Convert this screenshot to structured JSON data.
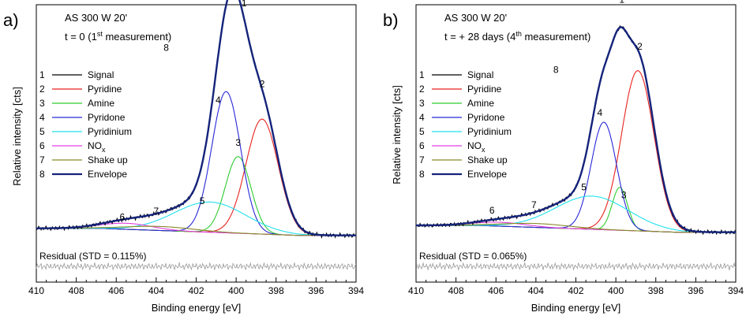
{
  "chart_data": [
    {
      "type": "line",
      "panel_label": "a)",
      "title": "AS 300 W 20'",
      "subtitle": "t = 0 (1st measurement)",
      "xlabel": "Binding energy [eV]",
      "ylabel": "Relative intensity [cts]",
      "x_reversed": true,
      "xlim": [
        410,
        394
      ],
      "xticks": [
        410,
        408,
        406,
        404,
        402,
        400,
        398,
        396,
        394
      ],
      "residual_label": "Residual (STD = 0.115%)",
      "legend_placement": "top-left",
      "legend": [
        {
          "num": "1",
          "label": "Signal",
          "color": "#000000"
        },
        {
          "num": "2",
          "label": "Pyridine",
          "color": "#e8231f"
        },
        {
          "num": "3",
          "label": "Amine",
          "color": "#2fcc2f"
        },
        {
          "num": "4",
          "label": "Pyridone",
          "color": "#2828d8"
        },
        {
          "num": "5",
          "label": "Pyridinium",
          "color": "#22e0ee"
        },
        {
          "num": "6",
          "label": "NOx",
          "color": "#e040e0"
        },
        {
          "num": "7",
          "label": "Shake up",
          "color": "#8a8a2a"
        },
        {
          "num": "8",
          "label": "Envelope",
          "color": "#14237a"
        }
      ],
      "peaks": [
        {
          "num": "2",
          "center": 398.7,
          "height": 0.57,
          "fwhm": 1.9
        },
        {
          "num": "3",
          "center": 399.9,
          "height": 0.38,
          "fwhm": 1.5
        },
        {
          "num": "4",
          "center": 400.5,
          "height": 0.7,
          "fwhm": 1.7
        },
        {
          "num": "5",
          "center": 401.3,
          "height": 0.15,
          "fwhm": 4.2
        },
        {
          "num": "6",
          "center": 405.5,
          "height": 0.03,
          "fwhm": 3.0
        },
        {
          "num": "7",
          "center": 403.8,
          "height": 0.02,
          "fwhm": 4.0
        }
      ],
      "peak_labels": [
        {
          "num": "1",
          "x": 399.6,
          "y": 1.14
        },
        {
          "num": "2",
          "x": 398.7,
          "y": 0.74
        },
        {
          "num": "3",
          "x": 399.9,
          "y": 0.45
        },
        {
          "num": "4",
          "x": 400.9,
          "y": 0.66
        },
        {
          "num": "5",
          "x": 401.7,
          "y": 0.16
        },
        {
          "num": "6",
          "x": 405.7,
          "y": 0.08
        },
        {
          "num": "7",
          "x": 404.0,
          "y": 0.11
        },
        {
          "num": "8",
          "x": 403.5,
          "y": 0.92
        }
      ]
    },
    {
      "type": "line",
      "panel_label": "b)",
      "title": "AS 300 W 20'",
      "subtitle": "t = + 28 days (4th measurement)",
      "xlabel": "Binding energy [eV]",
      "ylabel": "Relative intensity [cts]",
      "x_reversed": true,
      "xlim": [
        410,
        394
      ],
      "xticks": [
        410,
        408,
        406,
        404,
        402,
        400,
        398,
        396,
        394
      ],
      "residual_label": "Residual (STD = 0.065%)",
      "legend_placement": "top-left",
      "legend": [
        {
          "num": "1",
          "label": "Signal",
          "color": "#000000"
        },
        {
          "num": "2",
          "label": "Pyridine",
          "color": "#e8231f"
        },
        {
          "num": "3",
          "label": "Amine",
          "color": "#2fcc2f"
        },
        {
          "num": "4",
          "label": "Pyridone",
          "color": "#2828d8"
        },
        {
          "num": "5",
          "label": "Pyridinium",
          "color": "#22e0ee"
        },
        {
          "num": "6",
          "label": "NOx",
          "color": "#e040e0"
        },
        {
          "num": "7",
          "label": "Shake up",
          "color": "#8a8a2a"
        },
        {
          "num": "8",
          "label": "Envelope",
          "color": "#14237a"
        }
      ],
      "peaks": [
        {
          "num": "2",
          "center": 398.9,
          "height": 0.82,
          "fwhm": 1.9
        },
        {
          "num": "3",
          "center": 399.8,
          "height": 0.22,
          "fwhm": 0.9
        },
        {
          "num": "4",
          "center": 400.6,
          "height": 0.55,
          "fwhm": 1.5
        },
        {
          "num": "5",
          "center": 401.2,
          "height": 0.17,
          "fwhm": 4.3
        },
        {
          "num": "6",
          "center": 405.8,
          "height": 0.02,
          "fwhm": 3.0
        },
        {
          "num": "7",
          "center": 404.0,
          "height": 0.02,
          "fwhm": 4.0
        }
      ],
      "peak_labels": [
        {
          "num": "1",
          "x": 399.7,
          "y": 1.18
        },
        {
          "num": "2",
          "x": 398.8,
          "y": 0.94
        },
        {
          "num": "3",
          "x": 399.6,
          "y": 0.18
        },
        {
          "num": "4",
          "x": 400.8,
          "y": 0.6
        },
        {
          "num": "5",
          "x": 401.6,
          "y": 0.22
        },
        {
          "num": "6",
          "x": 406.2,
          "y": 0.1
        },
        {
          "num": "7",
          "x": 404.1,
          "y": 0.13
        },
        {
          "num": "8",
          "x": 403.0,
          "y": 0.82
        }
      ]
    }
  ]
}
